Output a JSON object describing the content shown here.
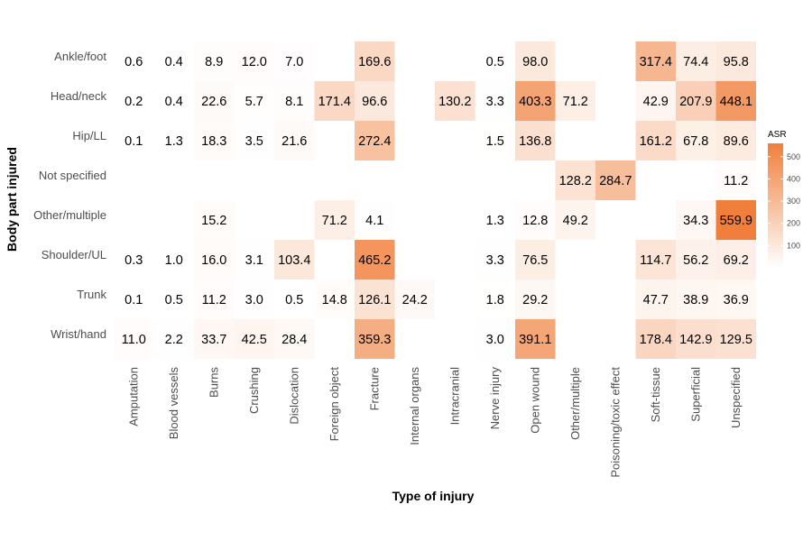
{
  "chart_data": {
    "type": "heatmap",
    "xlabel": "Type of injury",
    "ylabel": "Body part injured",
    "x_categories": [
      "Amputation",
      "Blood vessels",
      "Burns",
      "Crushing",
      "Dislocation",
      "Foreign object",
      "Fracture",
      "Internal organs",
      "Intracranial",
      "Nerve injury",
      "Open wound",
      "Other/multiple",
      "Poisoning/toxic effect",
      "Soft-tissue",
      "Superficial",
      "Unspecified"
    ],
    "y_categories": [
      "Ankle/foot",
      "Head/neck",
      "Hip/LL",
      "Not specified",
      "Other/multiple",
      "Shoulder/UL",
      "Trunk",
      "Wrist/hand"
    ],
    "values": [
      [
        0.6,
        0.4,
        8.9,
        12.0,
        7.0,
        null,
        169.6,
        null,
        null,
        0.5,
        98.0,
        null,
        null,
        317.4,
        74.4,
        95.8
      ],
      [
        0.2,
        0.4,
        22.6,
        5.7,
        8.1,
        171.4,
        96.6,
        null,
        130.2,
        3.3,
        403.3,
        71.2,
        null,
        42.9,
        207.9,
        448.1
      ],
      [
        0.1,
        1.3,
        18.3,
        3.5,
        21.6,
        null,
        272.4,
        null,
        null,
        1.5,
        136.8,
        null,
        null,
        161.2,
        67.8,
        89.6
      ],
      [
        null,
        null,
        null,
        null,
        null,
        null,
        null,
        null,
        null,
        null,
        null,
        128.2,
        284.7,
        null,
        null,
        11.2
      ],
      [
        null,
        null,
        15.2,
        null,
        null,
        71.2,
        4.1,
        null,
        null,
        1.3,
        12.8,
        49.2,
        null,
        null,
        34.3,
        559.9
      ],
      [
        0.3,
        1.0,
        16.0,
        3.1,
        103.4,
        null,
        465.2,
        null,
        null,
        3.3,
        76.5,
        null,
        null,
        114.7,
        56.2,
        69.2
      ],
      [
        0.1,
        0.5,
        11.2,
        3.0,
        0.5,
        14.8,
        126.1,
        24.2,
        null,
        1.8,
        29.2,
        null,
        null,
        47.7,
        38.9,
        36.9
      ],
      [
        11.0,
        2.2,
        33.7,
        42.5,
        28.4,
        null,
        359.3,
        null,
        null,
        3.0,
        391.1,
        null,
        null,
        178.4,
        142.9,
        129.5
      ]
    ],
    "value_labels": [
      [
        "0.6",
        "0.4",
        "8.9",
        "12.0",
        "7.0",
        null,
        "169.6",
        null,
        null,
        "0.5",
        "98.0",
        null,
        null,
        "317.4",
        "74.4",
        "95.8"
      ],
      [
        "0.2",
        "0.4",
        "22.6",
        "5.7",
        "8.1",
        "171.4",
        "96.6",
        null,
        "130.2",
        "3.3",
        "403.3",
        "71.2",
        null,
        "42.9",
        "207.9",
        "448.1"
      ],
      [
        "0.1",
        "1.3",
        "18.3",
        "3.5",
        "21.6",
        null,
        "272.4",
        null,
        null,
        "1.5",
        "136.8",
        null,
        null,
        "161.2",
        "67.8",
        "89.6"
      ],
      [
        null,
        null,
        null,
        null,
        null,
        null,
        null,
        null,
        null,
        null,
        null,
        "128.2",
        "284.7",
        null,
        null,
        "11.2"
      ],
      [
        null,
        null,
        "15.2",
        null,
        null,
        "71.2",
        "4.1",
        null,
        null,
        "1.3",
        "12.8",
        "49.2",
        null,
        null,
        "34.3",
        "559.9"
      ],
      [
        "0.3",
        "1.0",
        "16.0",
        "3.1",
        "103.4",
        null,
        "465.2",
        null,
        null,
        "3.3",
        "76.5",
        null,
        null,
        "114.7",
        "56.2",
        "69.2"
      ],
      [
        "0.1",
        "0.5",
        "11.2",
        "3.0",
        "0.5",
        "14.8",
        "126.1",
        "24.2",
        null,
        "1.8",
        "29.2",
        null,
        null,
        "47.7",
        "38.9",
        "36.9"
      ],
      [
        "11.0",
        "2.2",
        "33.7",
        "42.5",
        "28.4",
        null,
        "359.3",
        null,
        null,
        "3.0",
        "391.1",
        null,
        null,
        "178.4",
        "142.9",
        "129.5"
      ]
    ],
    "legend": {
      "title": "ASR",
      "ticks": [
        100,
        200,
        300,
        400,
        500
      ],
      "tick_labels": [
        "100",
        "200",
        "300",
        "400",
        "500"
      ],
      "range": [
        0,
        560
      ],
      "color_low": "#ffffff",
      "color_high": "#f07f3c",
      "placement": "right"
    },
    "grid": false
  }
}
